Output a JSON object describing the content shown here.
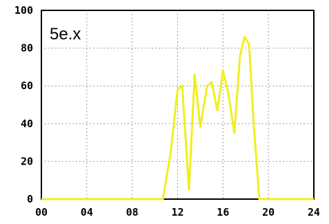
{
  "chart_data": {
    "type": "line",
    "panel_label": "5e.x",
    "xlabel": "",
    "ylabel": "",
    "xlim": [
      0,
      24
    ],
    "ylim": [
      0,
      100
    ],
    "x_ticks": [
      0,
      4,
      8,
      12,
      16,
      20,
      24
    ],
    "x_tick_labels": [
      "00",
      "04",
      "08",
      "12",
      "16",
      "20",
      "24"
    ],
    "y_ticks": [
      0,
      20,
      40,
      60,
      80,
      100
    ],
    "y_tick_labels": [
      "0",
      "20",
      "40",
      "60",
      "80",
      "100"
    ],
    "grid": true,
    "colors": {
      "line": "#f2ee1f",
      "frame": "#000000",
      "grid": "#9a9a9a",
      "background": "#ffffff"
    },
    "series": [
      {
        "x": [
          0,
          10.7,
          11.4,
          12.0,
          12.4,
          13.0,
          13.5,
          14.0,
          14.6,
          15.0,
          15.5,
          16.0,
          16.5,
          17.0,
          17.5,
          17.9,
          18.3,
          18.7,
          19.2,
          20,
          24
        ],
        "y": [
          0,
          0,
          25,
          58,
          60,
          5,
          66,
          38,
          60,
          62,
          47,
          68,
          55,
          35,
          76,
          86,
          82,
          40,
          0,
          0,
          0
        ]
      }
    ]
  }
}
